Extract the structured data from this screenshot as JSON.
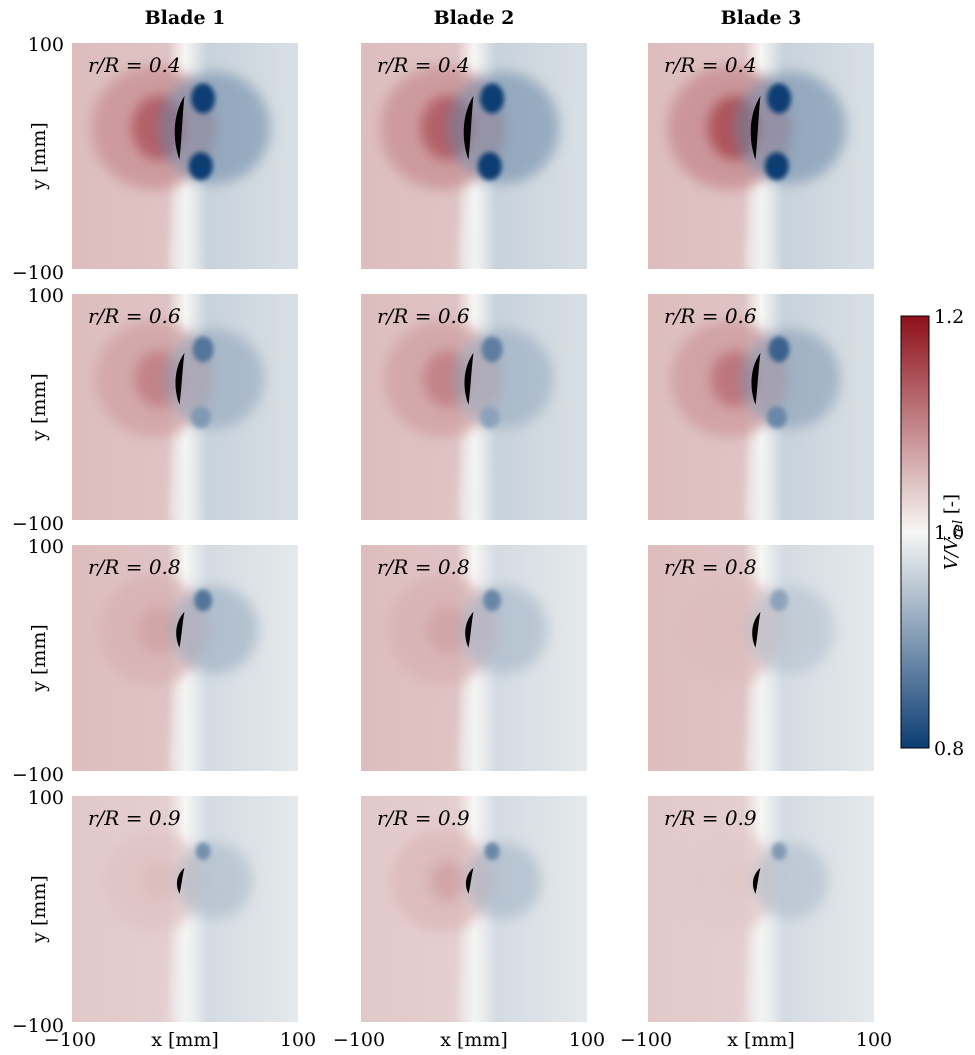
{
  "chart_data": {
    "type": "heatmap",
    "columns": [
      "Blade 1",
      "Blade 2",
      "Blade 3"
    ],
    "rows": [
      "r/R = 0.4",
      "r/R = 0.6",
      "r/R = 0.8",
      "r/R = 0.9"
    ],
    "row_values": [
      0.4,
      0.6,
      0.8,
      0.9
    ],
    "xlabel": "x [mm]",
    "ylabel": "y [mm]",
    "xlim": [
      -100,
      100
    ],
    "ylim": [
      -100,
      100
    ],
    "x_ticks": [
      "−100",
      "100"
    ],
    "y_ticks": [
      "100",
      "−100"
    ],
    "colorbar": {
      "label": "V/V_rel [-]",
      "label_main": "V/V",
      "label_sub": "rel",
      "label_unit": " [-]",
      "min": 0.8,
      "max": 1.2,
      "ticks": [
        "1.2",
        "1.0",
        "0.8"
      ],
      "colormap": "RdBu_r",
      "color_low": "#0b3c73",
      "color_mid": "#f7f7f5",
      "color_high": "#8e0f1a"
    },
    "peak_values": [
      [
        1.13,
        1.13,
        1.14
      ],
      [
        1.1,
        1.1,
        1.11
      ],
      [
        1.07,
        1.07,
        1.05
      ],
      [
        1.05,
        1.07,
        1.04
      ]
    ],
    "min_values": [
      [
        0.8,
        0.8,
        0.8
      ],
      [
        0.86,
        0.87,
        0.84
      ],
      [
        0.86,
        0.88,
        0.91
      ],
      [
        0.89,
        0.88,
        0.9
      ]
    ],
    "freestream_left": [
      1.05,
      1.05,
      1.05,
      1.04
    ],
    "freestream_right": [
      0.96,
      0.96,
      0.97,
      0.97
    ]
  }
}
